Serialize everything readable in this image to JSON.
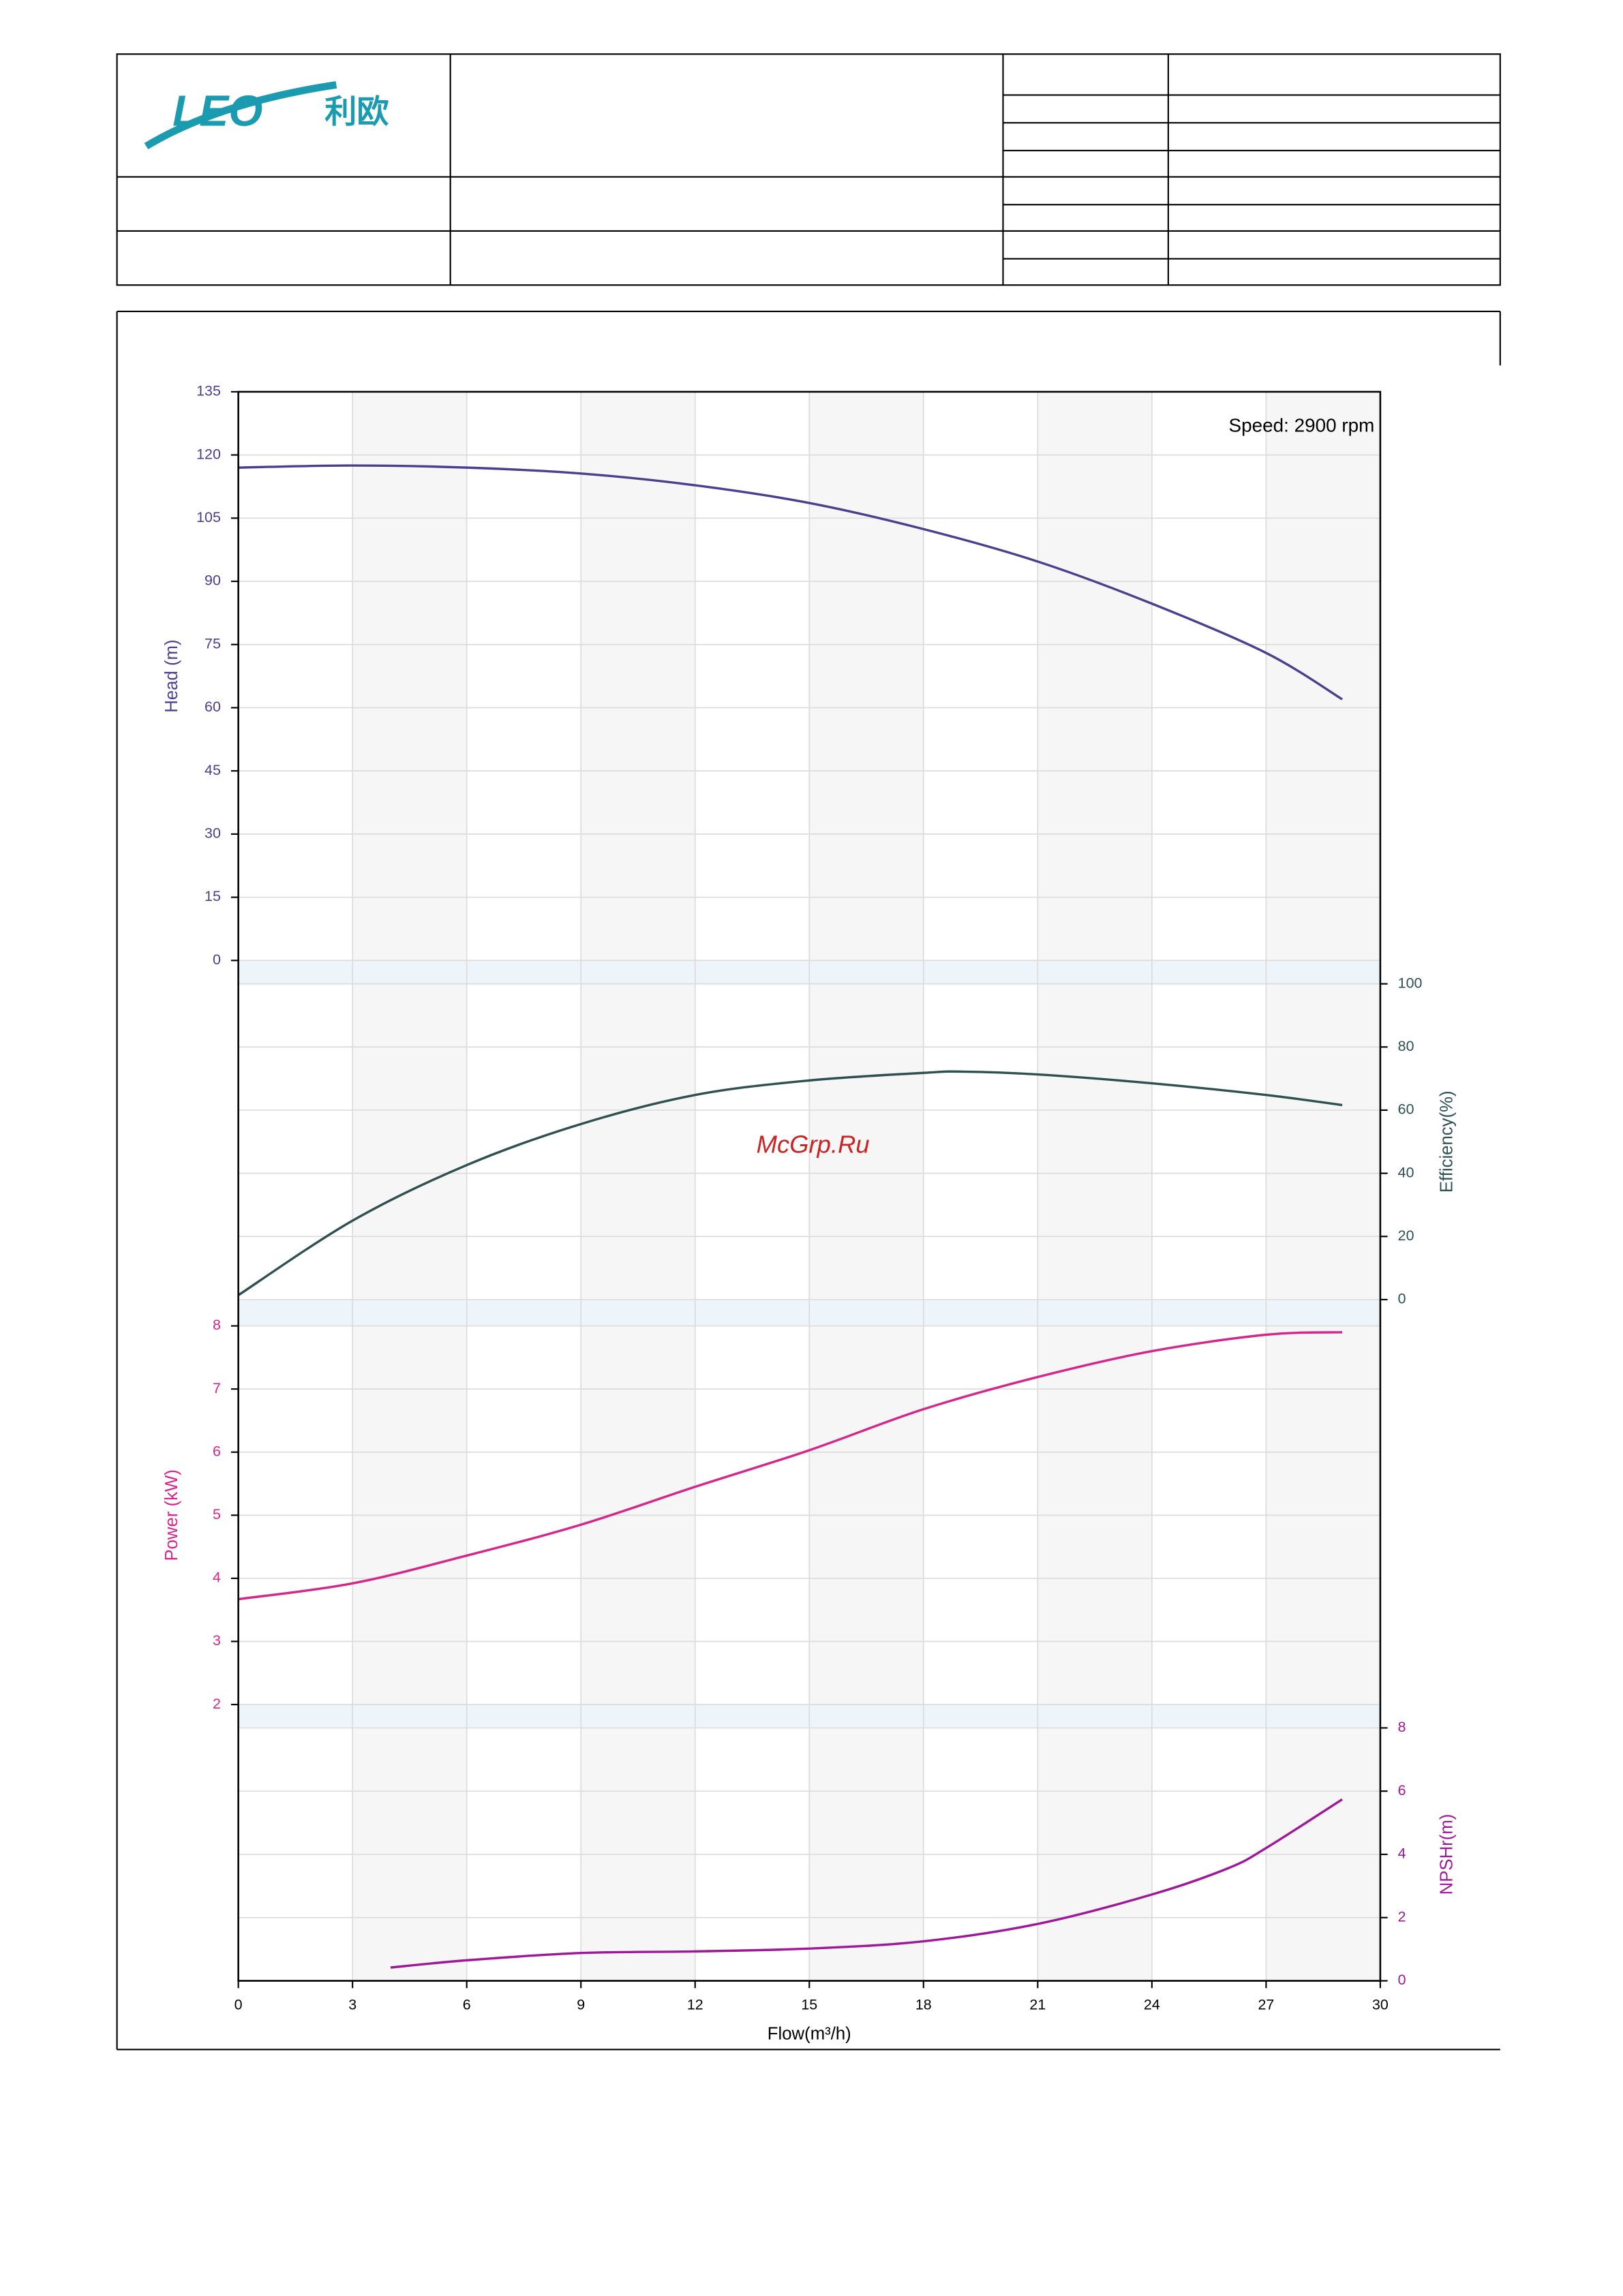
{
  "header": {
    "logo_mark": "LEO",
    "logo_text": "利欧"
  },
  "watermark": "McGrp.Ru",
  "chart_data": [
    {
      "type": "line",
      "ylabel": "Head (m)",
      "annotation": "Speed: 2900 rpm",
      "color": "#4b3f8f",
      "x": [
        0,
        3,
        6,
        9,
        12,
        15,
        18,
        21,
        24,
        27,
        29
      ],
      "values": [
        117,
        117.5,
        117,
        115.6,
        112.8,
        108.6,
        102.4,
        94.7,
        84.7,
        73,
        62
      ],
      "xlim": [
        0,
        30
      ],
      "ylim": [
        0,
        135
      ],
      "yticks": [
        0,
        15,
        30,
        45,
        60,
        75,
        90,
        105,
        120,
        135
      ],
      "axis_side": "left"
    },
    {
      "type": "line",
      "ylabel": "Efficiency(%)",
      "color": "#2f5050",
      "x": [
        0,
        3,
        6,
        9,
        12,
        15,
        18,
        19,
        21,
        24,
        27,
        29
      ],
      "values": [
        1.4,
        25,
        42.6,
        55.6,
        64.8,
        69.4,
        71.8,
        72.2,
        71.3,
        68.5,
        64.8,
        61.6
      ],
      "xlim": [
        0,
        30
      ],
      "ylim": [
        0,
        100
      ],
      "yticks": [
        0,
        20,
        40,
        60,
        80,
        100
      ],
      "axis_side": "right"
    },
    {
      "type": "line",
      "ylabel": "Power (kW)",
      "color": "#d6268a",
      "x": [
        0,
        3,
        6,
        9,
        12,
        15,
        18,
        21,
        24,
        27,
        29
      ],
      "values": [
        3.67,
        3.92,
        4.36,
        4.85,
        5.45,
        6.03,
        6.68,
        7.19,
        7.6,
        7.86,
        7.9
      ],
      "xlim": [
        0,
        30
      ],
      "ylim": [
        2,
        8
      ],
      "yticks": [
        2,
        3,
        4,
        5,
        6,
        7,
        8
      ],
      "axis_side": "left"
    },
    {
      "type": "line",
      "ylabel": "NPSHr(m)",
      "color": "#a0189a",
      "x": [
        4,
        6,
        9,
        12,
        15,
        18,
        21,
        24,
        26,
        27,
        29
      ],
      "values": [
        0.42,
        0.65,
        0.88,
        0.93,
        1.02,
        1.25,
        1.8,
        2.73,
        3.56,
        4.2,
        5.74
      ],
      "xlim": [
        0,
        30
      ],
      "ylim": [
        0,
        8
      ],
      "yticks": [
        0,
        2,
        4,
        6,
        8
      ],
      "axis_side": "right",
      "xlabel": "Flow(m³/h)",
      "xticks": [
        0,
        3,
        6,
        9,
        12,
        15,
        18,
        21,
        24,
        27,
        30
      ]
    }
  ]
}
